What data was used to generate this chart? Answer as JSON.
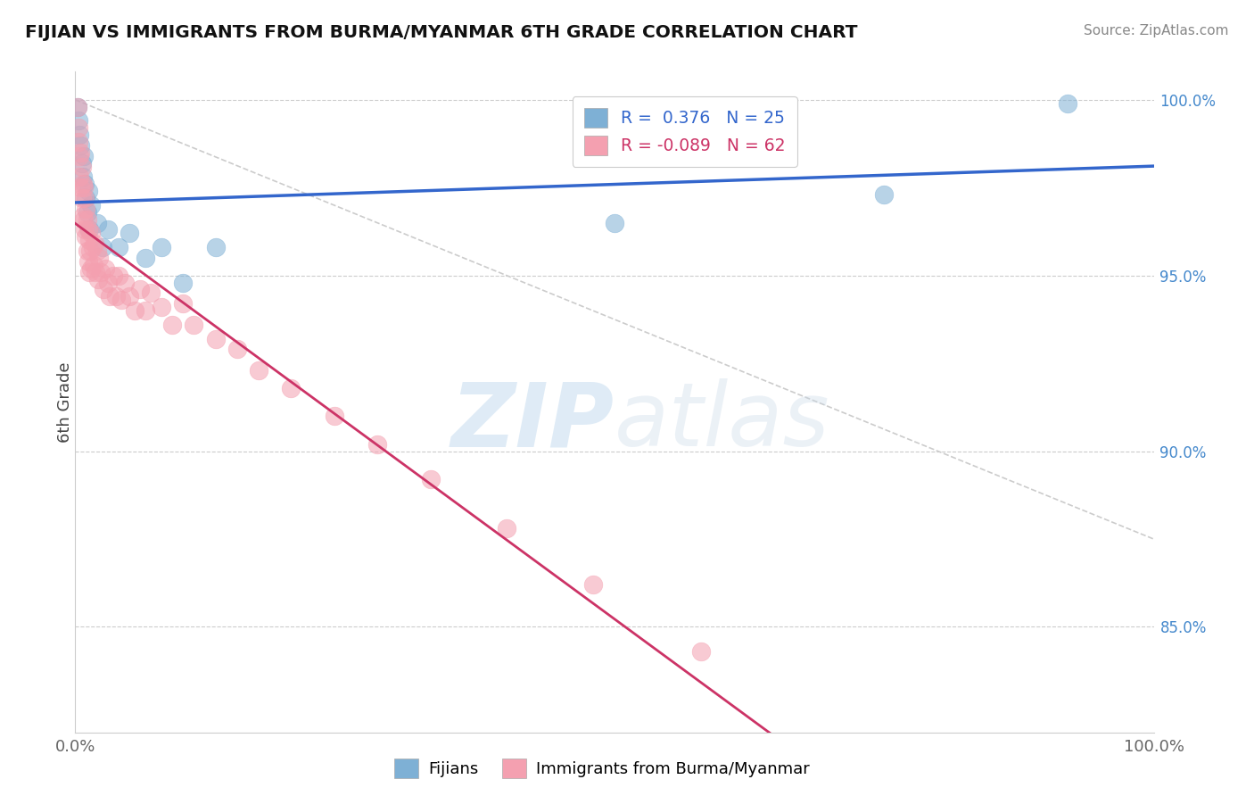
{
  "title": "FIJIAN VS IMMIGRANTS FROM BURMA/MYANMAR 6TH GRADE CORRELATION CHART",
  "source": "Source: ZipAtlas.com",
  "ylabel": "6th Grade",
  "xlim": [
    0.0,
    1.0
  ],
  "ylim": [
    0.82,
    1.008
  ],
  "right_yticks": [
    0.85,
    0.9,
    0.95,
    1.0
  ],
  "right_yticklabels": [
    "85.0%",
    "90.0%",
    "95.0%",
    "100.0%"
  ],
  "blue_R": 0.376,
  "blue_N": 25,
  "pink_R": -0.089,
  "pink_N": 62,
  "blue_color": "#7EB0D5",
  "pink_color": "#F4A0B0",
  "blue_line_color": "#3366CC",
  "pink_line_color": "#CC3366",
  "dashed_line_color": "#CCCCCC",
  "watermark_color": "#C8DCF0",
  "legend_label_blue": "Fijians",
  "legend_label_pink": "Immigrants from Burma/Myanmar",
  "blue_x": [
    0.002,
    0.003,
    0.004,
    0.005,
    0.006,
    0.007,
    0.008,
    0.009,
    0.01,
    0.011,
    0.012,
    0.013,
    0.015,
    0.02,
    0.025,
    0.03,
    0.04,
    0.05,
    0.065,
    0.08,
    0.1,
    0.13,
    0.5,
    0.75,
    0.92
  ],
  "blue_y": [
    0.998,
    0.994,
    0.99,
    0.987,
    0.982,
    0.978,
    0.984,
    0.976,
    0.972,
    0.968,
    0.974,
    0.963,
    0.97,
    0.965,
    0.958,
    0.963,
    0.958,
    0.962,
    0.955,
    0.958,
    0.948,
    0.958,
    0.965,
    0.973,
    0.999
  ],
  "pink_x": [
    0.002,
    0.003,
    0.003,
    0.004,
    0.004,
    0.005,
    0.005,
    0.006,
    0.006,
    0.007,
    0.007,
    0.008,
    0.008,
    0.009,
    0.009,
    0.01,
    0.01,
    0.011,
    0.011,
    0.012,
    0.012,
    0.013,
    0.013,
    0.014,
    0.015,
    0.015,
    0.016,
    0.017,
    0.018,
    0.019,
    0.02,
    0.021,
    0.022,
    0.024,
    0.026,
    0.028,
    0.03,
    0.032,
    0.035,
    0.038,
    0.04,
    0.043,
    0.046,
    0.05,
    0.055,
    0.06,
    0.065,
    0.07,
    0.08,
    0.09,
    0.1,
    0.11,
    0.13,
    0.15,
    0.17,
    0.2,
    0.24,
    0.28,
    0.33,
    0.4,
    0.48,
    0.58
  ],
  "pink_y": [
    0.998,
    0.992,
    0.988,
    0.984,
    0.978,
    0.985,
    0.975,
    0.981,
    0.972,
    0.976,
    0.967,
    0.975,
    0.966,
    0.972,
    0.963,
    0.969,
    0.961,
    0.966,
    0.957,
    0.963,
    0.954,
    0.96,
    0.951,
    0.957,
    0.962,
    0.952,
    0.958,
    0.953,
    0.959,
    0.951,
    0.957,
    0.949,
    0.955,
    0.951,
    0.946,
    0.952,
    0.948,
    0.944,
    0.95,
    0.944,
    0.95,
    0.943,
    0.948,
    0.944,
    0.94,
    0.946,
    0.94,
    0.945,
    0.941,
    0.936,
    0.942,
    0.936,
    0.932,
    0.929,
    0.923,
    0.918,
    0.91,
    0.902,
    0.892,
    0.878,
    0.862,
    0.843
  ]
}
